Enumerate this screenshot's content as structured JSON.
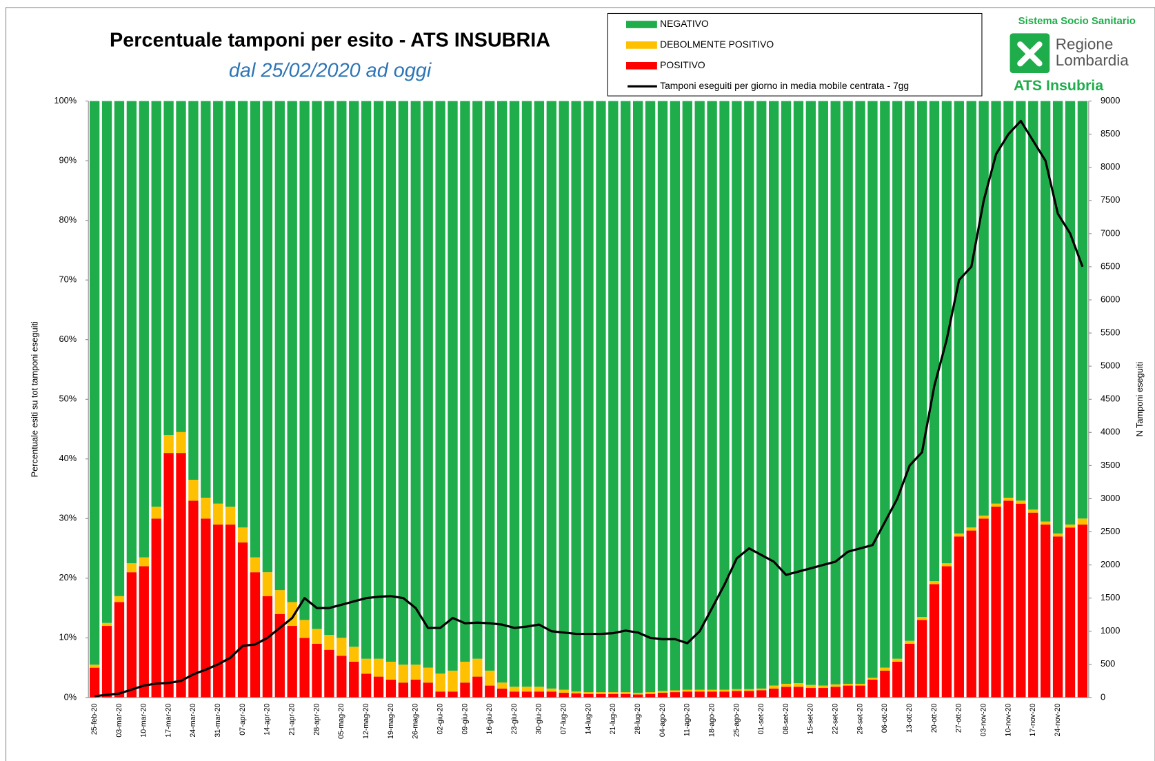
{
  "chart_data": {
    "type": "bar",
    "title": "Percentuale tamponi per esito - ATS INSUBRIA",
    "subtitle": "dal 25/02/2020 ad oggi",
    "y_label": "Percentuale esiti su tot tamponi eseguiti",
    "y2_label": "N Tamponi eseguiti",
    "logo": {
      "top": "Sistema Socio Sanitario",
      "name1": "Regione",
      "name2": "Lombardia",
      "bottom": "ATS Insubria"
    },
    "stacked": true,
    "categories": [
      "25-feb-20",
      null,
      "03-mar-20",
      null,
      "10-mar-20",
      null,
      "17-mar-20",
      null,
      "24-mar-20",
      null,
      "31-mar-20",
      null,
      "07-apr-20",
      null,
      "14-apr-20",
      null,
      "21-apr-20",
      null,
      "28-apr-20",
      null,
      "05-mag-20",
      null,
      "12-mag-20",
      null,
      "19-mag-20",
      null,
      "26-mag-20",
      null,
      "02-giu-20",
      null,
      "09-giu-20",
      null,
      "16-giu-20",
      null,
      "23-giu-20",
      null,
      "30-giu-20",
      null,
      "07-lug-20",
      null,
      "14-lug-20",
      null,
      "21-lug-20",
      null,
      "28-lug-20",
      null,
      "04-ago-20",
      null,
      "11-ago-20",
      null,
      "18-ago-20",
      null,
      "25-ago-20",
      null,
      "01-set-20",
      null,
      "08-set-20",
      null,
      "15-set-20",
      null,
      "22-set-20",
      null,
      "29-set-20",
      null,
      "06-ott-20",
      null,
      "13-ott-20",
      null,
      "20-ott-20",
      null,
      "27-ott-20",
      null,
      "03-nov-20",
      null,
      "10-nov-20",
      null,
      "17-nov-20",
      null,
      "24-nov-20",
      null,
      null
    ],
    "series": [
      {
        "name": "NEGATIVO",
        "color": "#1fad4b",
        "values": [
          94.5,
          87.5,
          83,
          77.5,
          76.5,
          68,
          56,
          55.5,
          63.5,
          66.5,
          67.5,
          68,
          71.5,
          76.5,
          79,
          82,
          84,
          87,
          88.5,
          89.5,
          90,
          91.5,
          93.5,
          93.5,
          94,
          94.5,
          94.5,
          95,
          96,
          95.5,
          94,
          93.5,
          95.5,
          97.5,
          98.2,
          98.2,
          98.2,
          98.5,
          98.7,
          99,
          99.1,
          99.1,
          99.1,
          99.1,
          99.2,
          99.1,
          98.9,
          98.8,
          98.7,
          98.7,
          98.7,
          98.7,
          98.6,
          98.6,
          98.5,
          98,
          97.7,
          97.6,
          97.9,
          98,
          97.8,
          97.7,
          97.7,
          96.7,
          95,
          93.5,
          90.5,
          86.5,
          80.5,
          77.5,
          72.5,
          71.5,
          69.5,
          67.5,
          66.5,
          67,
          68.5,
          70.5,
          72.5,
          71,
          70
        ]
      },
      {
        "name": "DEBOLMENTE POSITIVO",
        "color": "#ffc000",
        "values": [
          0.5,
          0.5,
          1,
          1.5,
          1.5,
          2,
          3,
          3.5,
          3.5,
          3.5,
          3.5,
          3,
          2.5,
          2.5,
          4,
          4,
          4,
          3,
          2.5,
          2.5,
          3,
          2.5,
          2.5,
          3,
          3,
          3,
          2.5,
          2.5,
          3,
          3.5,
          3.5,
          3,
          2.5,
          1,
          0.8,
          0.8,
          0.8,
          0.5,
          0.5,
          0.3,
          0.3,
          0.3,
          0.3,
          0.3,
          0.3,
          0.3,
          0.3,
          0.3,
          0.3,
          0.3,
          0.3,
          0.3,
          0.3,
          0.3,
          0.3,
          0.5,
          0.5,
          0.6,
          0.5,
          0.4,
          0.4,
          0.3,
          0.3,
          0.3,
          0.5,
          0.5,
          0.5,
          0.5,
          0.5,
          0.5,
          0.5,
          0.5,
          0.5,
          0.5,
          0.5,
          0.5,
          0.5,
          0.5,
          0.5,
          0.5,
          1
        ]
      },
      {
        "name": "POSITIVO",
        "color": "#ff0000",
        "values": [
          5,
          12,
          16,
          21,
          22,
          30,
          41,
          41,
          33,
          30,
          29,
          29,
          26,
          21,
          17,
          14,
          12,
          10,
          9,
          8,
          7,
          6,
          4,
          3.5,
          3,
          2.5,
          3,
          2.5,
          1,
          1,
          2.5,
          3.5,
          2,
          1.5,
          1,
          1,
          1,
          1,
          0.8,
          0.7,
          0.6,
          0.6,
          0.6,
          0.6,
          0.5,
          0.6,
          0.8,
          0.9,
          1,
          1,
          1,
          1,
          1.1,
          1.1,
          1.2,
          1.5,
          1.8,
          1.8,
          1.6,
          1.6,
          1.8,
          2,
          2,
          3,
          4.5,
          6,
          9,
          13,
          19,
          22,
          27,
          28,
          30,
          32,
          33,
          32.5,
          31,
          29,
          27,
          28.5,
          29
        ]
      },
      {
        "name": "Tamponi eseguiti per giorno in media mobile centrata - 7gg",
        "color": "#000000",
        "type": "line",
        "axis": "y2",
        "values": [
          20,
          40,
          60,
          120,
          180,
          210,
          220,
          250,
          350,
          420,
          500,
          600,
          780,
          800,
          900,
          1050,
          1200,
          1500,
          1350,
          1350,
          1400,
          1450,
          1500,
          1520,
          1530,
          1500,
          1350,
          1050,
          1050,
          1200,
          1120,
          1130,
          1120,
          1100,
          1050,
          1070,
          1100,
          1000,
          980,
          960,
          960,
          960,
          970,
          1010,
          980,
          900,
          880,
          880,
          820,
          1000,
          1350,
          1700,
          2100,
          2250,
          2150,
          2050,
          1850,
          1900,
          1950,
          2000,
          2050,
          2200,
          2250,
          2300,
          2650,
          3000,
          3500,
          3700,
          4700,
          5400,
          6300,
          6500,
          7500,
          8200,
          8500,
          8700,
          8400,
          8100,
          7300,
          7000,
          6500
        ]
      }
    ],
    "ylim": [
      0,
      100
    ],
    "yticks": [
      {
        "value": 0,
        "label": "0%"
      },
      {
        "value": 10,
        "label": "10%"
      },
      {
        "value": 20,
        "label": "20%"
      },
      {
        "value": 30,
        "label": "30%"
      },
      {
        "value": 40,
        "label": "40%"
      },
      {
        "value": 50,
        "label": "50%"
      },
      {
        "value": 60,
        "label": "60%"
      },
      {
        "value": 70,
        "label": "70%"
      },
      {
        "value": 80,
        "label": "80%"
      },
      {
        "value": 90,
        "label": "90%"
      },
      {
        "value": 100,
        "label": "100%"
      }
    ],
    "y2lim": [
      0,
      9000
    ],
    "y2ticks": [
      0,
      500,
      1000,
      1500,
      2000,
      2500,
      3000,
      3500,
      4000,
      4500,
      5000,
      5500,
      6000,
      6500,
      7000,
      7500,
      8000,
      8500,
      9000
    ],
    "legend": "top-right"
  }
}
